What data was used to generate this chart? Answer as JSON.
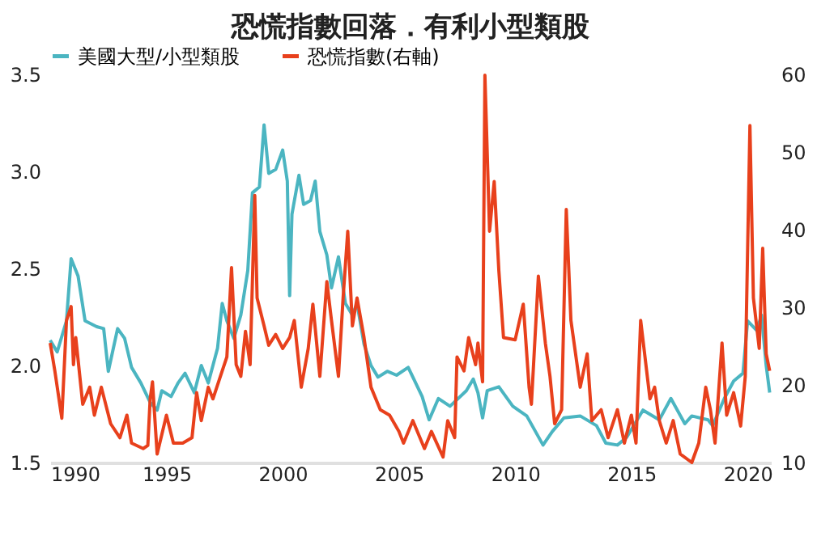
{
  "chart_data": {
    "type": "line",
    "title": "恐慌指數回落．有利小型類股",
    "xlim": [
      1990,
      2021
    ],
    "xticks": [
      1990,
      1995,
      2000,
      2005,
      2010,
      2015,
      2020
    ],
    "ylim": [
      1.5,
      3.5
    ],
    "yticks": [
      {
        "value": 1.5,
        "label": "1.5"
      },
      {
        "value": 2,
        "label": "2.0"
      },
      {
        "value": 2.5,
        "label": "2.5"
      },
      {
        "value": 3,
        "label": "3.0"
      },
      {
        "value": 3.5,
        "label": "3.5"
      }
    ],
    "y2lim": [
      10,
      60
    ],
    "y2ticks": [
      10,
      20,
      30,
      40,
      50,
      60
    ],
    "grid": false,
    "legend": "top",
    "marker": "none",
    "line_style": "solid",
    "series": [
      {
        "name": "美國大型/小型類股",
        "color": "#4bb5c1",
        "x": [
          1990.0,
          1990.3,
          1990.7,
          1990.9,
          1991.2,
          1991.5,
          1992.0,
          1992.3,
          1992.5,
          1992.9,
          1993.2,
          1993.5,
          1993.9,
          1994.3,
          1994.6,
          1994.8,
          1995.2,
          1995.5,
          1995.8,
          1996.2,
          1996.5,
          1996.8,
          1997.2,
          1997.4,
          1997.6,
          1997.9,
          1998.2,
          1998.5,
          1998.7,
          1999.0,
          1999.2,
          1999.4,
          1999.7,
          2000.0,
          2000.2,
          2000.3,
          2000.4,
          2000.7,
          2000.9,
          2001.2,
          2001.4,
          2001.6,
          2001.9,
          2002.1,
          2002.4,
          2002.7,
          2003.0,
          2003.2,
          2003.5,
          2003.8,
          2004.1,
          2004.5,
          2004.9,
          2005.4,
          2006.0,
          2006.3,
          2006.7,
          2007.2,
          2007.9,
          2008.2,
          2008.4,
          2008.6,
          2008.8,
          2009.3,
          2009.9,
          2010.5,
          2011.2,
          2011.6,
          2012.1,
          2012.8,
          2013.5,
          2013.9,
          2014.4,
          2014.8,
          2015.5,
          2016.2,
          2016.7,
          2017.3,
          2017.6,
          2018.3,
          2018.5,
          2019.0,
          2019.4,
          2019.8,
          2020.0,
          2020.4,
          2020.6,
          2020.8,
          2020.95
        ],
        "values": [
          2.13,
          2.07,
          2.23,
          2.55,
          2.46,
          2.23,
          2.2,
          2.19,
          1.97,
          2.19,
          2.14,
          1.99,
          1.91,
          1.81,
          1.77,
          1.87,
          1.84,
          1.91,
          1.96,
          1.86,
          2.0,
          1.91,
          2.09,
          2.32,
          2.23,
          2.14,
          2.26,
          2.49,
          2.89,
          2.92,
          3.24,
          2.99,
          3.01,
          3.11,
          2.95,
          2.36,
          2.78,
          2.98,
          2.83,
          2.85,
          2.95,
          2.69,
          2.57,
          2.4,
          2.56,
          2.32,
          2.26,
          2.32,
          2.11,
          2.0,
          1.94,
          1.97,
          1.95,
          1.99,
          1.84,
          1.72,
          1.83,
          1.79,
          1.87,
          1.93,
          1.86,
          1.73,
          1.87,
          1.89,
          1.79,
          1.74,
          1.59,
          1.66,
          1.73,
          1.74,
          1.69,
          1.6,
          1.59,
          1.63,
          1.77,
          1.72,
          1.83,
          1.7,
          1.74,
          1.72,
          1.69,
          1.83,
          1.92,
          1.96,
          2.23,
          2.18,
          2.26,
          2.0,
          1.86
        ]
      },
      {
        "name": "恐慌指數(右軸)",
        "color": "#e8401c",
        "axis": "y2",
        "x": [
          1990.0,
          1990.2,
          1990.5,
          1990.7,
          1990.9,
          1991.0,
          1991.1,
          1991.4,
          1991.7,
          1991.9,
          1992.2,
          1992.6,
          1993.0,
          1993.3,
          1993.5,
          1994.0,
          1994.2,
          1994.3,
          1994.4,
          1994.6,
          1995.0,
          1995.3,
          1995.7,
          1996.1,
          1996.3,
          1996.5,
          1996.8,
          1997.0,
          1997.4,
          1997.6,
          1997.8,
          1998.0,
          1998.2,
          1998.4,
          1998.6,
          1998.8,
          1998.9,
          1999.2,
          1999.4,
          1999.7,
          2000.0,
          2000.3,
          2000.5,
          2000.8,
          2001.1,
          2001.3,
          2001.6,
          2001.9,
          2002.1,
          2002.4,
          2002.6,
          2002.8,
          2003.0,
          2003.2,
          2003.5,
          2003.8,
          2004.2,
          2004.6,
          2005.0,
          2005.2,
          2005.6,
          2006.1,
          2006.4,
          2006.9,
          2007.1,
          2007.4,
          2007.5,
          2007.8,
          2008.0,
          2008.3,
          2008.4,
          2008.6,
          2008.7,
          2008.9,
          2009.1,
          2009.3,
          2009.5,
          2010.0,
          2010.35,
          2010.6,
          2010.7,
          2011.0,
          2011.3,
          2011.5,
          2011.7,
          2012.0,
          2012.2,
          2012.4,
          2012.8,
          2013.1,
          2013.3,
          2013.7,
          2014.0,
          2014.4,
          2014.7,
          2015.0,
          2015.2,
          2015.4,
          2015.8,
          2016.0,
          2016.2,
          2016.5,
          2016.8,
          2017.1,
          2017.6,
          2017.9,
          2018.2,
          2018.4,
          2018.6,
          2018.9,
          2019.1,
          2019.4,
          2019.7,
          2019.9,
          2020.1,
          2020.25,
          2020.5,
          2020.65,
          2020.8,
          2020.95
        ],
        "values": [
          25.4,
          21.8,
          15.7,
          28.3,
          30.1,
          22.6,
          26.1,
          17.5,
          19.7,
          16.1,
          19.7,
          15.0,
          13.2,
          16.1,
          12.5,
          11.8,
          12.2,
          18.2,
          20.4,
          11.1,
          16.1,
          12.5,
          12.5,
          13.2,
          19.0,
          15.4,
          19.7,
          18.2,
          21.8,
          23.6,
          35.1,
          22.6,
          21.1,
          26.9,
          22.6,
          44.4,
          31.2,
          27.6,
          25.1,
          26.5,
          24.7,
          26.1,
          28.3,
          19.7,
          24.7,
          30.4,
          21.1,
          33.3,
          28.3,
          21.1,
          31.2,
          39.8,
          27.6,
          31.2,
          26.1,
          19.7,
          16.8,
          16.1,
          14.0,
          12.5,
          15.4,
          11.8,
          14.0,
          10.7,
          15.4,
          13.2,
          23.6,
          21.8,
          26.1,
          22.6,
          25.4,
          20.4,
          59.9,
          39.8,
          46.2,
          34.7,
          26.1,
          25.8,
          30.4,
          19.7,
          17.5,
          34.0,
          25.4,
          21.1,
          15.0,
          16.8,
          42.6,
          28.3,
          19.7,
          24.0,
          15.4,
          16.8,
          13.2,
          16.8,
          12.5,
          16.1,
          12.5,
          28.3,
          18.2,
          19.7,
          15.4,
          12.5,
          15.4,
          11.1,
          10.0,
          12.5,
          19.7,
          16.8,
          12.5,
          25.4,
          16.1,
          19.0,
          14.7,
          21.1,
          53.4,
          31.2,
          24.7,
          37.6,
          24.0,
          21.8
        ]
      }
    ]
  }
}
